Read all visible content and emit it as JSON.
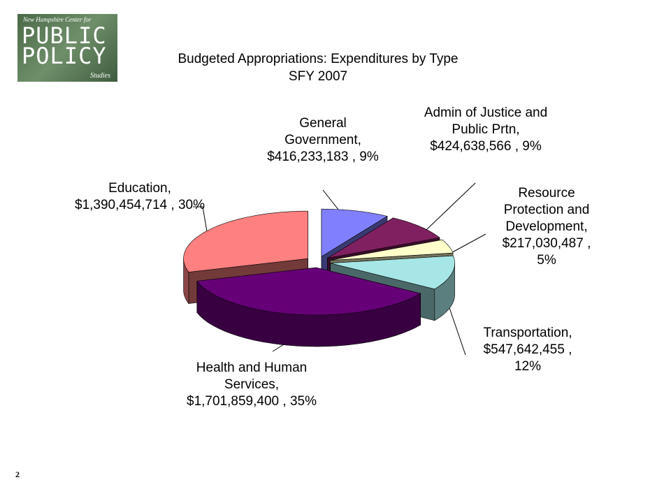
{
  "logo": {
    "top": "New Hampshire Center for",
    "line1": "PUBLIC",
    "line2": "POLICY",
    "bottom": "Studies"
  },
  "page_number": "2",
  "chart_data": {
    "type": "pie3d",
    "title": "Budgeted Appropriations:   Expenditures by Type",
    "subtitle": "SFY 2007",
    "categories": [
      "General Government",
      "Admin of Justice and Public Prtn",
      "Resource Protection and Development",
      "Transportation",
      "Health and Human Services",
      "Education"
    ],
    "values": [
      416233183,
      424638566,
      217030487,
      547642455,
      1701859400,
      1390454714
    ],
    "value_labels": [
      "$416,233,183",
      "$424,638,566",
      "$217,030,487",
      "$547,642,455",
      "$1,701,859,400",
      "$1,390,454,714"
    ],
    "percent_labels": [
      "9%",
      "9%",
      "5%",
      "12%",
      "35%",
      "30%"
    ],
    "colors": [
      "#8080ff",
      "#802060",
      "#ffffcc",
      "#a6e6e6",
      "#660077",
      "#ff8080"
    ]
  }
}
